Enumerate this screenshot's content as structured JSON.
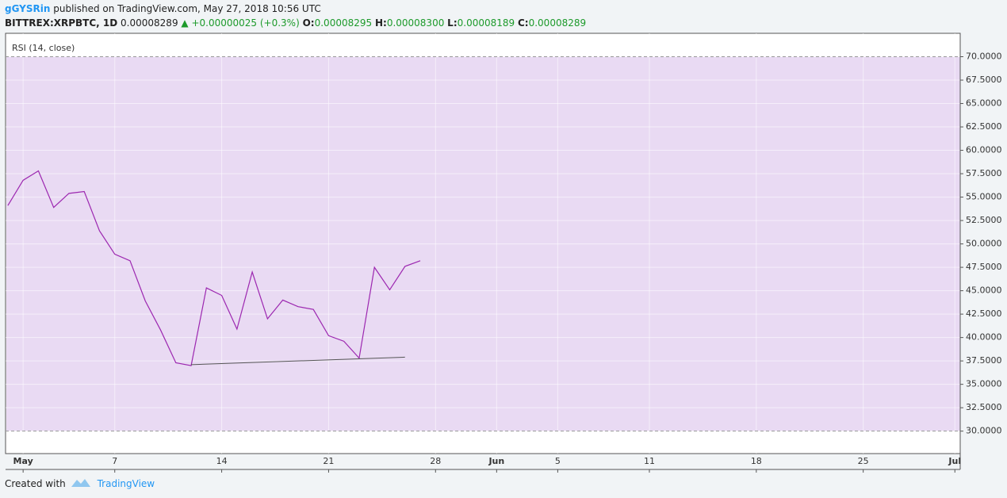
{
  "header": {
    "author": "gGYSRin",
    "published": "published on TradingView.com, May 27, 2018 10:56 UTC",
    "symbol": "BITTREX:XRPBTC, 1D",
    "last": "0.00008289",
    "arrow": "▲",
    "change": "+0.00000025 (+0.3%)",
    "ohlc": [
      {
        "label": "O:",
        "value": "0.00008295"
      },
      {
        "label": "H:",
        "value": "0.00008300"
      },
      {
        "label": "L:",
        "value": "0.00008189"
      },
      {
        "label": "C:",
        "value": "0.00008289"
      }
    ]
  },
  "chart_data": {
    "type": "line",
    "indicator": "RSI (14, close)",
    "x": [
      0,
      1,
      2,
      3,
      4,
      5,
      6,
      7,
      8,
      9,
      10,
      11,
      12,
      13,
      14,
      15,
      16,
      17,
      18,
      19,
      20,
      21,
      22,
      23,
      24,
      25,
      26,
      27
    ],
    "series": [
      {
        "color": "#9c27b0",
        "values": [
          54.1,
          56.8,
          57.8,
          53.9,
          55.4,
          55.6,
          51.4,
          48.9,
          48.2,
          43.9,
          40.8,
          37.3,
          37.0,
          45.3,
          44.5,
          40.9,
          47.0,
          42.0,
          44.0,
          43.3,
          43.0,
          40.2,
          39.6,
          37.8,
          47.5,
          45.1,
          47.6,
          48.2
        ]
      }
    ],
    "trendline": {
      "x": [
        12,
        26
      ],
      "values": [
        37.1,
        37.9
      ],
      "color": "#555555"
    },
    "band": [
      30,
      70
    ],
    "band_color": "#e9daf3",
    "xlim": [
      -0.15,
      62.35
    ],
    "ylim": [
      27.6,
      72.5
    ],
    "xticks": [
      {
        "value": 1,
        "label": "May"
      },
      7,
      14,
      21,
      28,
      {
        "value": 32,
        "label": "Jun"
      },
      {
        "value": 36,
        "label": "5"
      },
      {
        "value": 42,
        "label": "11"
      },
      {
        "value": 49,
        "label": "18"
      },
      {
        "value": 56,
        "label": "25"
      },
      {
        "value": 62,
        "label": "Jul"
      }
    ],
    "yticks": [
      {
        "value": 30,
        "label": "30.0000"
      },
      {
        "value": 32.5,
        "label": "32.5000"
      },
      {
        "value": 35,
        "label": "35.0000"
      },
      {
        "value": 37.5,
        "label": "37.5000"
      },
      {
        "value": 40,
        "label": "40.0000"
      },
      {
        "value": 42.5,
        "label": "42.5000"
      },
      {
        "value": 45,
        "label": "45.0000"
      },
      {
        "value": 47.5,
        "label": "47.5000"
      },
      {
        "value": 50,
        "label": "50.0000"
      },
      {
        "value": 52.5,
        "label": "52.5000"
      },
      {
        "value": 55,
        "label": "55.0000"
      },
      {
        "value": 57.5,
        "label": "57.5000"
      },
      {
        "value": 60,
        "label": "60.0000"
      },
      {
        "value": 62.5,
        "label": "62.5000"
      },
      {
        "value": 65,
        "label": "65.0000"
      },
      {
        "value": 67.5,
        "label": "67.5000"
      },
      {
        "value": 70,
        "label": "70.0000"
      }
    ],
    "grid": true
  },
  "footer": {
    "created": "Created with",
    "brand": "TradingView"
  }
}
